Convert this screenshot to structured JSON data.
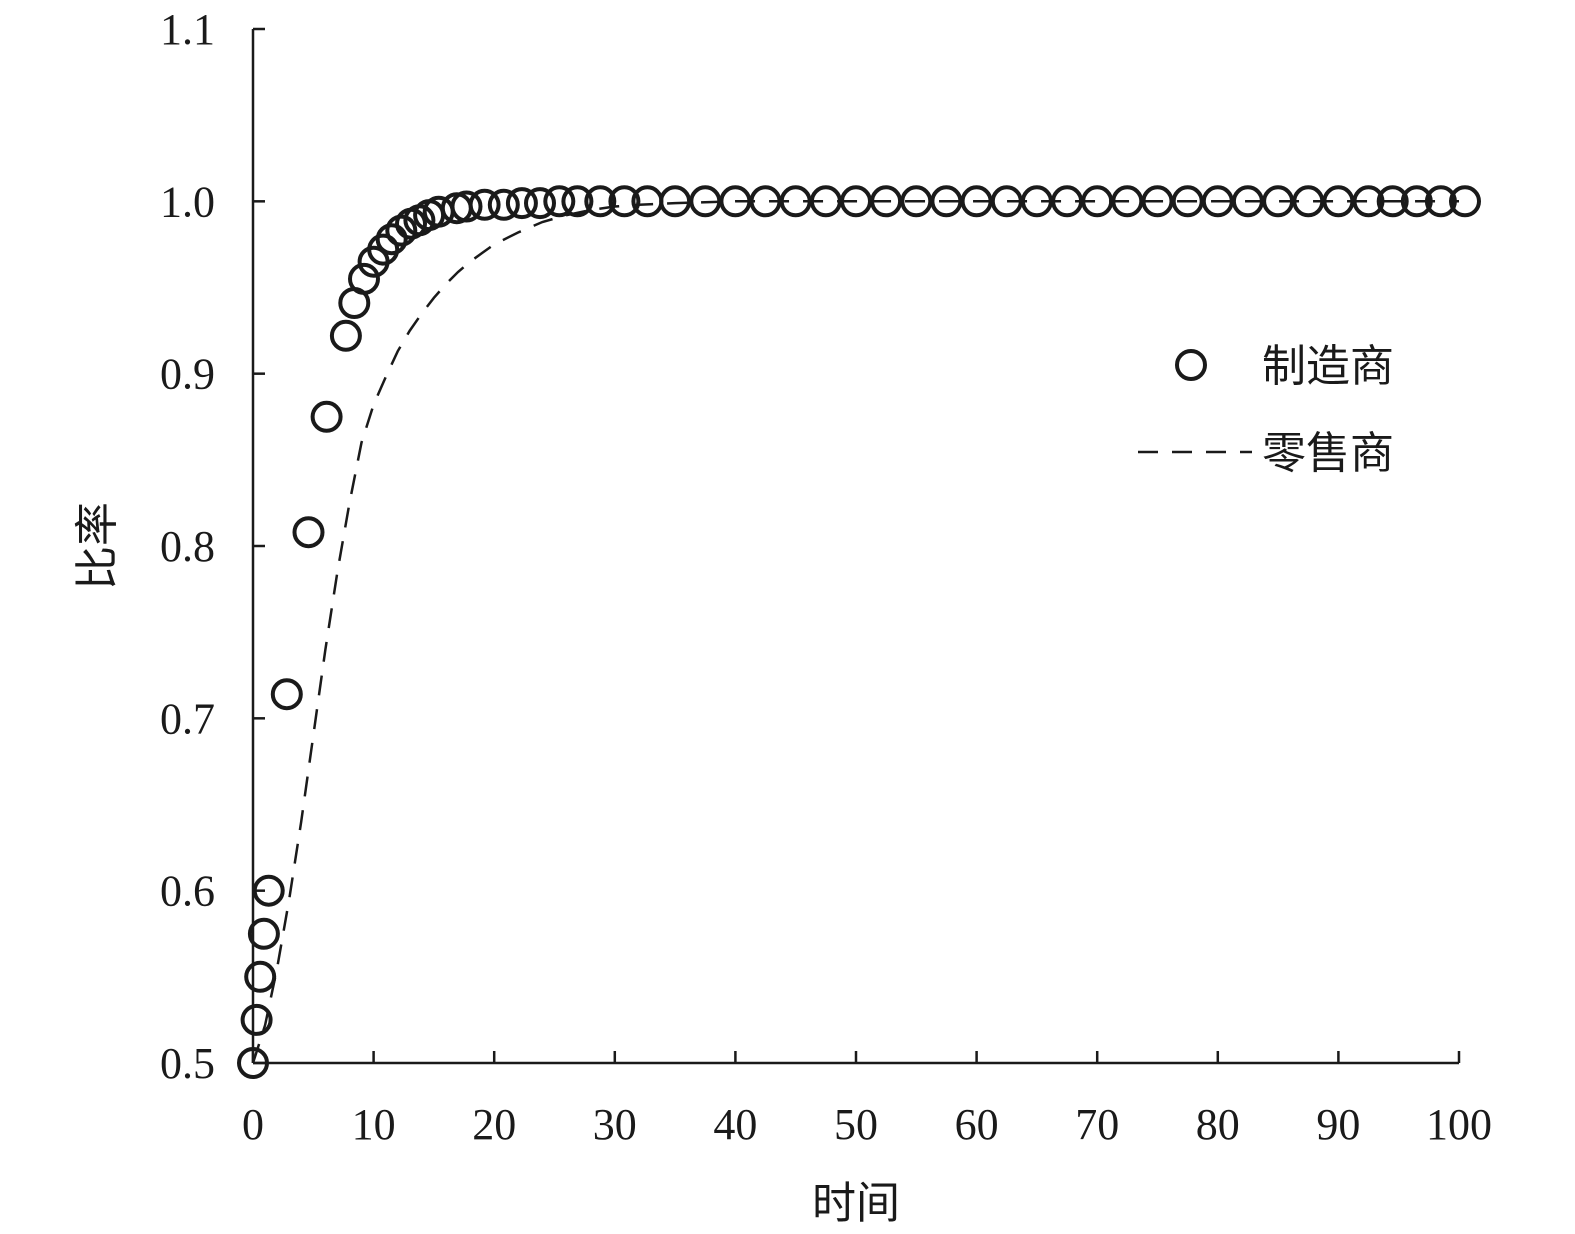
{
  "chart_data": {
    "type": "scatter",
    "title": "",
    "xlabel": "时间",
    "ylabel": "比率",
    "xlim": [
      0,
      100
    ],
    "ylim": [
      0.5,
      1.1
    ],
    "xticks": [
      0,
      10,
      20,
      30,
      40,
      50,
      60,
      70,
      80,
      90,
      100
    ],
    "xtick_labels": [
      "0",
      "10",
      "20",
      "30",
      "40",
      "50",
      "60",
      "70",
      "80",
      "90",
      "100"
    ],
    "yticks": [
      0.5,
      0.6,
      0.7,
      0.8,
      0.9,
      1.0,
      1.1
    ],
    "ytick_labels": [
      "0.5",
      "0.6",
      "0.7",
      "0.8",
      "0.9",
      "1.0",
      "1.1"
    ],
    "grid": false,
    "legend_position": "right",
    "series": [
      {
        "name": "制造商",
        "style": "open-circle-markers",
        "color": "#1a1a1a",
        "x": [
          0,
          0.3,
          0.6,
          0.9,
          1.3,
          2.8,
          4.6,
          6.1,
          7.7,
          8.4,
          9.2,
          10.0,
          10.8,
          11.5,
          12.3,
          13.1,
          13.8,
          14.6,
          15.4,
          16.9,
          17.7,
          19.2,
          20.8,
          22.3,
          23.8,
          25.4,
          26.9,
          28.8,
          30.8,
          32.7,
          35.0,
          37.5,
          40.0,
          42.5,
          45.0,
          47.5,
          50.0,
          52.5,
          55.0,
          57.5,
          60.0,
          62.5,
          65.0,
          67.5,
          70.0,
          72.5,
          75.0,
          77.5,
          80.0,
          82.5,
          85.0,
          87.5,
          90.0,
          92.5,
          94.5,
          96.5,
          98.5,
          100.5
        ],
        "y": [
          0.5,
          0.525,
          0.55,
          0.575,
          0.6,
          0.714,
          0.808,
          0.875,
          0.922,
          0.941,
          0.955,
          0.965,
          0.972,
          0.978,
          0.983,
          0.987,
          0.989,
          0.992,
          0.994,
          0.996,
          0.997,
          0.998,
          0.998,
          0.999,
          0.999,
          1.0,
          1.0,
          1.0,
          1.0,
          1.0,
          1.0,
          1.0,
          1.0,
          1.0,
          1.0,
          1.0,
          1.0,
          1.0,
          1.0,
          1.0,
          1.0,
          1.0,
          1.0,
          1.0,
          1.0,
          1.0,
          1.0,
          1.0,
          1.0,
          1.0,
          1.0,
          1.0,
          1.0,
          1.0,
          1.0,
          1.0,
          1.0,
          1.0
        ]
      },
      {
        "name": "零售商",
        "style": "dashed-line",
        "color": "#1a1a1a",
        "x": [
          0,
          1,
          2,
          3,
          4,
          5,
          6,
          7,
          8,
          9,
          10,
          11,
          12,
          13,
          14,
          15,
          16,
          17,
          18,
          19,
          20,
          22,
          24,
          26,
          28,
          30,
          32,
          35,
          40,
          50,
          60,
          70,
          80,
          90,
          100
        ],
        "y": [
          0.5,
          0.522,
          0.555,
          0.595,
          0.64,
          0.69,
          0.74,
          0.785,
          0.825,
          0.86,
          0.882,
          0.898,
          0.913,
          0.925,
          0.935,
          0.944,
          0.952,
          0.959,
          0.965,
          0.97,
          0.975,
          0.982,
          0.988,
          0.992,
          0.995,
          0.997,
          0.998,
          0.999,
          1.0,
          1.0,
          1.0,
          1.0,
          1.0,
          1.0,
          1.0
        ]
      }
    ]
  }
}
